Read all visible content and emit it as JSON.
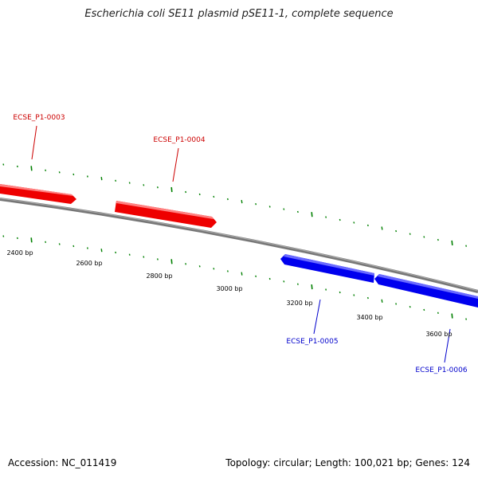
{
  "title": "Escherichia coli SE11 plasmid pSE11-1, complete sequence",
  "footer": {
    "accession": "Accession: NC_011419",
    "summary": "Topology: circular; Length: 100,021 bp; Genes: 124"
  },
  "colors": {
    "backbone": "#808080",
    "forward_gene": "#ff0000",
    "reverse_gene": "#0000ff",
    "tick": "#008000",
    "forward_label": "#cc0000",
    "reverse_label": "#0000cc"
  },
  "position_labels": [
    "2400 bp",
    "2600 bp",
    "2800 bp",
    "3000 bp",
    "3200 bp",
    "3400 bp",
    "3600 bp"
  ],
  "genes": [
    {
      "id": "ECSE_P1-0003",
      "strand": "forward"
    },
    {
      "id": "ECSE_P1-0004",
      "strand": "forward"
    },
    {
      "id": "ECSE_P1-0005",
      "strand": "reverse"
    },
    {
      "id": "ECSE_P1-0006",
      "strand": "reverse"
    }
  ]
}
